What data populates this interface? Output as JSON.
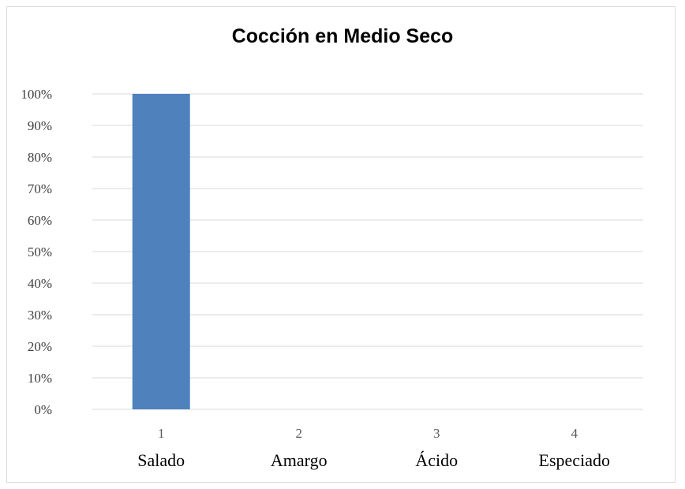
{
  "chart_data": {
    "type": "bar",
    "title": "Cocción en Medio Seco",
    "categories": [
      "1",
      "2",
      "3",
      "4"
    ],
    "category_labels": [
      "Salado",
      "Amargo",
      "Ácido",
      "Especiado"
    ],
    "values": [
      100,
      0,
      0,
      0
    ],
    "value_unit": "%",
    "ylim": [
      0,
      100
    ],
    "yticks": [
      "0%",
      "10%",
      "20%",
      "30%",
      "40%",
      "50%",
      "60%",
      "70%",
      "80%",
      "90%",
      "100%"
    ],
    "grid": true,
    "legend": "none",
    "bar_color": "#4f81bd",
    "grid_color": "#d9d9d9"
  }
}
